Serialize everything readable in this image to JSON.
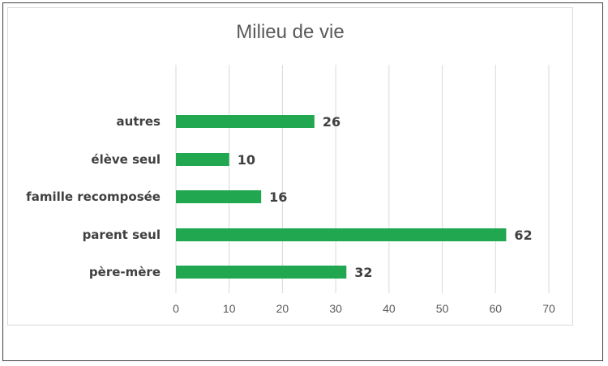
{
  "chart_data": {
    "type": "bar",
    "orientation": "horizontal",
    "title": "Milieu de vie",
    "xlabel": "",
    "ylabel": "",
    "categories": [
      "autres",
      "élève seul",
      "famille recomposée",
      "parent seul",
      "père-mère"
    ],
    "values": [
      26,
      10,
      16,
      62,
      32
    ],
    "data_labels": [
      "26",
      "10",
      "16",
      "62",
      "32"
    ],
    "xlim": [
      0,
      70
    ],
    "ticks": [
      0,
      10,
      20,
      30,
      40,
      50,
      60,
      70
    ],
    "tick_labels": [
      "0",
      "10",
      "20",
      "30",
      "40",
      "50",
      "60",
      "70"
    ],
    "grid": "vertical",
    "legend": "none",
    "bar_color": "#21a750",
    "gridline_color": "#d9d9d9",
    "text_color": "#404040"
  }
}
